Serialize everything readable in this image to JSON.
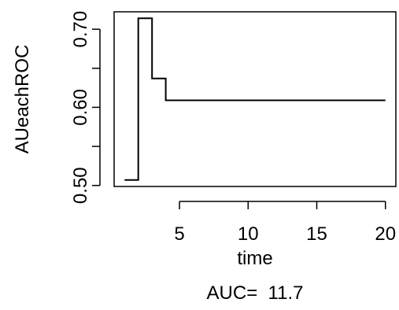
{
  "chart_data": {
    "type": "line",
    "line_style": "step",
    "title": "",
    "xlabel": "time",
    "ylabel": "AUeachROC",
    "subtitle": "AUC=  11.7",
    "x": [
      1.0,
      1.0,
      2.0,
      2.0,
      3.0,
      3.0,
      4.0,
      4.0,
      20.0
    ],
    "y": [
      0.507,
      0.507,
      0.507,
      0.714,
      0.714,
      0.637,
      0.637,
      0.609,
      0.609
    ],
    "x_ticks": [
      5,
      10,
      15,
      20
    ],
    "x_tick_labels": [
      "5",
      "10",
      "15",
      "20"
    ],
    "y_ticks": [
      0.5,
      0.55,
      0.6,
      0.65,
      0.7
    ],
    "y_tick_labels": [
      "0.50",
      "",
      "0.60",
      "",
      "0.70"
    ],
    "xlim": [
      0.24,
      20.76
    ],
    "ylim": [
      0.4987,
      0.7223
    ],
    "grid": false,
    "legend": "none",
    "line_color": "#000000"
  }
}
